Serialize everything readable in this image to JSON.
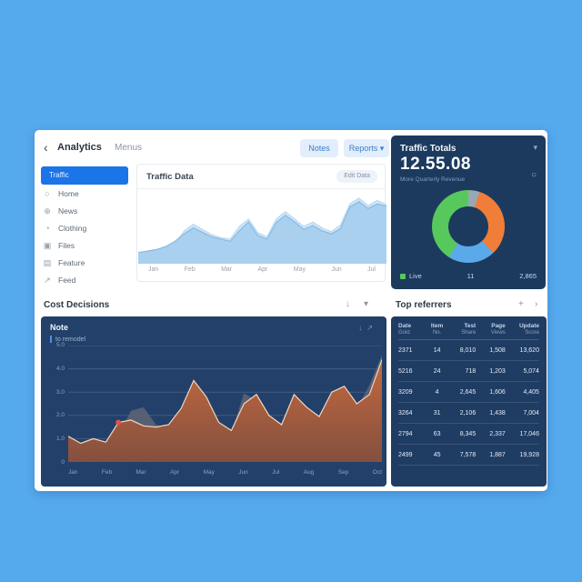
{
  "page_bg": "#55a9ed",
  "header": {
    "back": "‹",
    "title": "Analytics",
    "subtitle": "Menus",
    "notes_button": "Notes",
    "reports_button": "Reports ▾"
  },
  "sidebar": {
    "selected": "Traffic",
    "items": [
      {
        "label": "Home"
      },
      {
        "label": "News"
      },
      {
        "label": "Clothing"
      },
      {
        "label": "Files"
      },
      {
        "label": "Feature"
      },
      {
        "label": "Feed"
      }
    ]
  },
  "top_chart_card": {
    "title": "Traffic Data",
    "action": "Edit Data"
  },
  "traffic_panel": {
    "title": "Traffic Totals",
    "value": "12.55.08",
    "subtitle": "More Quarterly Revenue",
    "flag_icon": "▾",
    "refresh_icon": "○",
    "legend": [
      {
        "text": "Live",
        "swatch": "#57c85c"
      },
      {
        "text": "11"
      },
      {
        "text": "2,865"
      }
    ]
  },
  "sections": {
    "left_title": "Cost Decisions",
    "left_icon_download": "↓",
    "left_icon_chevron": "▾",
    "right_title": "Top referrers",
    "right_icon_plus": "+",
    "right_icon_arrow": "›"
  },
  "bottom_chart_card": {
    "title": "Note",
    "subtitle": "to remodel",
    "icons": "↓↗"
  },
  "table": {
    "columns": [
      {
        "line1": "Date",
        "line2": "Gold"
      },
      {
        "line1": "Item",
        "line2": "No."
      },
      {
        "line1": "Test",
        "line2": "Share"
      },
      {
        "line1": "Page",
        "line2": "Views"
      },
      {
        "line1": "Update",
        "line2": "Score"
      }
    ],
    "rows": [
      [
        "2371",
        "14",
        "8,010",
        "1,508",
        "13,620"
      ],
      [
        "5216",
        "24",
        "718",
        "1,203",
        "5,074"
      ],
      [
        "3209",
        "4",
        "2,645",
        "1,606",
        "4,405"
      ],
      [
        "3264",
        "31",
        "2,106",
        "1,438",
        "7,004"
      ],
      [
        "2794",
        "63",
        "8,345",
        "2,337",
        "17,046"
      ],
      [
        "2499",
        "45",
        "7,578",
        "1,887",
        "19,928"
      ]
    ]
  },
  "chart_data": [
    {
      "type": "area",
      "title": "Traffic Data",
      "x_labels": [
        "Jan",
        "Feb",
        "Mar",
        "Apr",
        "May",
        "Jun",
        "Jul"
      ],
      "ylim": [
        0,
        100
      ],
      "grid": false,
      "legend_position": "none",
      "series": [
        {
          "name": "secondary",
          "values": [
            13,
            15,
            18,
            21,
            28,
            44,
            53,
            46,
            39,
            35,
            33,
            50,
            60,
            42,
            36,
            60,
            70,
            60,
            50,
            56,
            48,
            43,
            52,
            80,
            88,
            78,
            85,
            79
          ],
          "fill": "#cfe4f5",
          "stroke": "#b8d8f0",
          "stroke_width": 1
        },
        {
          "name": "primary",
          "values": [
            15,
            17,
            19,
            23,
            30,
            40,
            48,
            42,
            36,
            33,
            30,
            44,
            56,
            38,
            33,
            55,
            65,
            56,
            46,
            51,
            44,
            40,
            47,
            76,
            83,
            74,
            80,
            77
          ],
          "fill": "#a9d1ef",
          "stroke": "#85bae6",
          "stroke_width": 1.2
        }
      ]
    },
    {
      "type": "pie",
      "donut": true,
      "segments": [
        {
          "value": 5,
          "color": "#9aa7b5"
        },
        {
          "value": 33,
          "color": "#f07d38"
        },
        {
          "value": 21,
          "color": "#5aa9e8"
        },
        {
          "value": 41,
          "color": "#57c85c"
        }
      ]
    },
    {
      "type": "area",
      "title": "Note",
      "x_labels": [
        "Jan",
        "Feb",
        "Mar",
        "Apr",
        "May",
        "Jun",
        "Jul",
        "Aug",
        "Sep",
        "Oct"
      ],
      "y_labels": [
        "5.0",
        "4.0",
        "3.0",
        "2.0",
        "1.0",
        "0"
      ],
      "ylim": [
        0,
        5
      ],
      "grid": true,
      "legend_position": "none",
      "series": [
        {
          "name": "secondary",
          "values": [
            0.9,
            0.7,
            0.9,
            0.8,
            1.15,
            2.2,
            2.35,
            1.6,
            1.45,
            1.9,
            2.7,
            2.3,
            1.5,
            1.25,
            2.95,
            2.65,
            1.85,
            1.45,
            2.25,
            2.0,
            1.75,
            2.45,
            2.65,
            2.3,
            3.3,
            4.6
          ],
          "fill": "#5c6374",
          "opacity": 0.9
        },
        {
          "name": "primary",
          "values": [
            1.1,
            0.8,
            1.0,
            0.85,
            1.7,
            1.8,
            1.55,
            1.5,
            1.6,
            2.3,
            3.5,
            2.8,
            1.7,
            1.35,
            2.5,
            2.9,
            2.0,
            1.6,
            2.9,
            2.35,
            1.95,
            3.0,
            3.25,
            2.5,
            2.9,
            4.4
          ],
          "fill_top": "#c4693f",
          "fill_bottom": "#84503f",
          "stroke": "#f2d8bc",
          "stroke_width": 1.2
        }
      ],
      "marker": {
        "fx": 0.16,
        "value": 1.7,
        "color": "#e2514b"
      }
    }
  ]
}
